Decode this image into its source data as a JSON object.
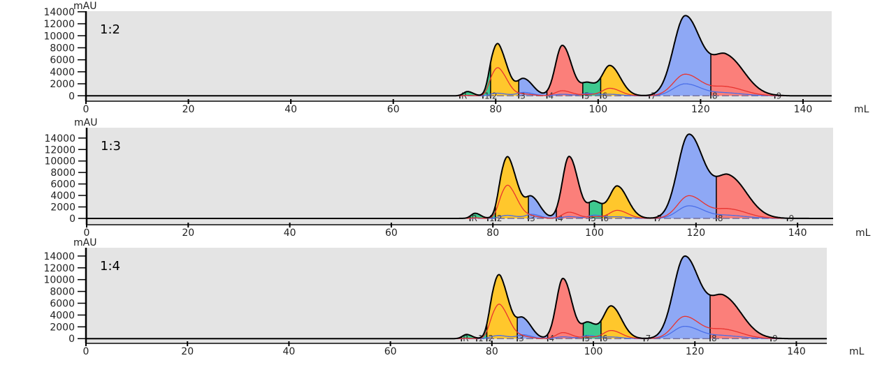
{
  "chart_data": [
    {
      "type": "area",
      "label": "1:2",
      "ylabel": "mAU",
      "xlabel": "mL",
      "xlim": [
        0,
        145.6
      ],
      "ylim": [
        -900,
        14100
      ],
      "xticks": [
        0,
        20,
        40,
        60,
        80,
        100,
        120,
        140
      ],
      "yticks": [
        0,
        2000,
        4000,
        6000,
        8000,
        10000,
        12000,
        14000
      ],
      "peaks": [
        {
          "x": 74.5,
          "y": 700,
          "w": 0.8,
          "red": 0.1,
          "blue": 0.05
        },
        {
          "x": 79.3,
          "y": 3500,
          "w": 0.8,
          "red": 0.5,
          "blue": 0.05
        },
        {
          "x": 80.8,
          "y": 7000,
          "w": 1.2,
          "red": 0.55,
          "blue": 0.05
        },
        {
          "x": 85.5,
          "y": 2800,
          "w": 1.3,
          "red": 0.1,
          "blue": 0.2
        },
        {
          "x": 93,
          "y": 8400,
          "w": 1.35,
          "red": 0.1,
          "blue": 0.03
        },
        {
          "x": 98,
          "y": 2000,
          "w": 1.2,
          "red": 0.1,
          "blue": 0.2
        },
        {
          "x": 102.3,
          "y": 5000,
          "w": 1.5,
          "red": 0.25,
          "blue": 0.05
        },
        {
          "x": 117,
          "y": 13300,
          "w": 2.3,
          "red": 0.27,
          "blue": 0.15
        },
        {
          "x": 125,
          "y": 6500,
          "w": 2.6,
          "red": 0.22,
          "blue": 0.07
        }
      ],
      "fractions": [
        {
          "label": "R",
          "from": 73,
          "to": 77.5,
          "color": "#3ec98f"
        },
        {
          "label": "1",
          "from": 77.5,
          "to": 79,
          "color": "#3ec98f"
        },
        {
          "label": "2",
          "from": 79,
          "to": 84.5,
          "color": "#ffc72c"
        },
        {
          "label": "3",
          "from": 84.5,
          "to": 90,
          "color": "#8ea8f5"
        },
        {
          "label": "4",
          "from": 90,
          "to": 97,
          "color": "#fb7f7a"
        },
        {
          "label": "5",
          "from": 97,
          "to": 100.5,
          "color": "#3ec98f"
        },
        {
          "label": "6",
          "from": 100.5,
          "to": 110,
          "color": "#ffc72c"
        },
        {
          "label": "7",
          "from": 110,
          "to": 122,
          "color": "#8ea8f5"
        },
        {
          "label": "8",
          "from": 122,
          "to": 134.5,
          "color": "#fb7f7a"
        },
        {
          "label": "9",
          "from": 134.5,
          "to": 145.6,
          "color": "#3ec98f"
        }
      ]
    },
    {
      "type": "area",
      "label": "1:3",
      "ylabel": "mAU",
      "xlabel": "mL",
      "xlim": [
        0,
        147
      ],
      "ylim": [
        -1100,
        15800
      ],
      "xticks": [
        0,
        20,
        40,
        60,
        80,
        100,
        120,
        140
      ],
      "yticks": [
        0,
        2000,
        4000,
        6000,
        8000,
        10000,
        12000,
        14000
      ],
      "peaks": [
        {
          "x": 76.5,
          "y": 900,
          "w": 0.8,
          "red": 0.1,
          "blue": 0.05
        },
        {
          "x": 81.8,
          "y": 4000,
          "w": 0.9,
          "red": 0.5,
          "blue": 0.05
        },
        {
          "x": 83.3,
          "y": 8500,
          "w": 1.3,
          "red": 0.55,
          "blue": 0.05
        },
        {
          "x": 87.7,
          "y": 3500,
          "w": 1.2,
          "red": 0.1,
          "blue": 0.2
        },
        {
          "x": 95,
          "y": 10800,
          "w": 1.3,
          "red": 0.1,
          "blue": 0.03
        },
        {
          "x": 100,
          "y": 2800,
          "w": 1.2,
          "red": 0.1,
          "blue": 0.2
        },
        {
          "x": 104.5,
          "y": 5600,
          "w": 1.5,
          "red": 0.25,
          "blue": 0.05
        },
        {
          "x": 118.6,
          "y": 14600,
          "w": 2.2,
          "red": 0.27,
          "blue": 0.15
        },
        {
          "x": 126.5,
          "y": 7200,
          "w": 2.6,
          "red": 0.22,
          "blue": 0.07
        }
      ],
      "fractions": [
        {
          "label": "R",
          "from": 75.5,
          "to": 79,
          "color": "#3ec98f"
        },
        {
          "label": "1",
          "from": 79,
          "to": 80.5,
          "color": "#3ec98f"
        },
        {
          "label": "2",
          "from": 80.5,
          "to": 87,
          "color": "#ffc72c"
        },
        {
          "label": "3",
          "from": 87,
          "to": 92.5,
          "color": "#8ea8f5"
        },
        {
          "label": "4",
          "from": 92.5,
          "to": 99,
          "color": "#fb7f7a"
        },
        {
          "label": "5",
          "from": 99,
          "to": 101.5,
          "color": "#3ec98f"
        },
        {
          "label": "6",
          "from": 101.5,
          "to": 112,
          "color": "#ffc72c"
        },
        {
          "label": "7",
          "from": 112,
          "to": 124,
          "color": "#8ea8f5"
        },
        {
          "label": "8",
          "from": 124,
          "to": 138,
          "color": "#fb7f7a"
        },
        {
          "label": "9",
          "from": 138,
          "to": 147,
          "color": "#3ec98f"
        }
      ]
    },
    {
      "type": "area",
      "label": "1:4",
      "ylabel": "mAU",
      "xlabel": "mL",
      "xlim": [
        0,
        146
      ],
      "ylim": [
        -800,
        15400
      ],
      "xticks": [
        0,
        20,
        40,
        60,
        80,
        100,
        120,
        140
      ],
      "yticks": [
        0,
        2000,
        4000,
        6000,
        8000,
        10000,
        12000,
        14000
      ],
      "peaks": [
        {
          "x": 75,
          "y": 700,
          "w": 0.8,
          "red": 0.1,
          "blue": 0.05
        },
        {
          "x": 80.2,
          "y": 4000,
          "w": 0.9,
          "red": 0.5,
          "blue": 0.05
        },
        {
          "x": 81.8,
          "y": 8800,
          "w": 1.3,
          "red": 0.55,
          "blue": 0.05
        },
        {
          "x": 86.2,
          "y": 3200,
          "w": 1.2,
          "red": 0.1,
          "blue": 0.2
        },
        {
          "x": 94,
          "y": 10200,
          "w": 1.3,
          "red": 0.1,
          "blue": 0.03
        },
        {
          "x": 99,
          "y": 2600,
          "w": 1.2,
          "red": 0.1,
          "blue": 0.2
        },
        {
          "x": 103.5,
          "y": 5500,
          "w": 1.5,
          "red": 0.25,
          "blue": 0.05
        },
        {
          "x": 118,
          "y": 13900,
          "w": 2.2,
          "red": 0.27,
          "blue": 0.15
        },
        {
          "x": 125.7,
          "y": 6900,
          "w": 2.6,
          "red": 0.22,
          "blue": 0.07
        }
      ],
      "fractions": [
        {
          "label": "R",
          "from": 74,
          "to": 77,
          "color": "#3ec98f"
        },
        {
          "label": "1",
          "from": 77,
          "to": 79,
          "color": "#3ec98f"
        },
        {
          "label": "2",
          "from": 79,
          "to": 85,
          "color": "#ffc72c"
        },
        {
          "label": "3",
          "from": 85,
          "to": 91,
          "color": "#8ea8f5"
        },
        {
          "label": "4",
          "from": 91,
          "to": 98,
          "color": "#fb7f7a"
        },
        {
          "label": "5",
          "from": 98,
          "to": 101.5,
          "color": "#3ec98f"
        },
        {
          "label": "6",
          "from": 101.5,
          "to": 110,
          "color": "#ffc72c"
        },
        {
          "label": "7",
          "from": 110,
          "to": 123,
          "color": "#8ea8f5"
        },
        {
          "label": "8",
          "from": 123,
          "to": 135,
          "color": "#fb7f7a"
        },
        {
          "label": "9",
          "from": 135,
          "to": 146,
          "color": "#3ec98f"
        }
      ]
    }
  ],
  "colors": {
    "plot_background": "#e4e4e4",
    "trace": "#000000",
    "trace2": "#e8332f",
    "trace3": "#4a6ee8",
    "baseline": "#6b6490"
  }
}
